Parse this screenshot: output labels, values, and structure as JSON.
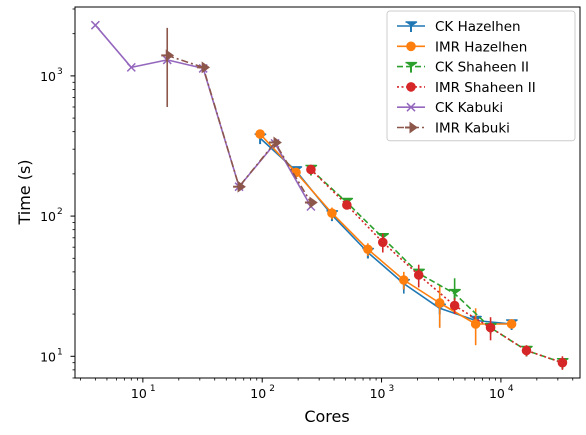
{
  "chart_data": {
    "type": "line",
    "xlabel": "Cores",
    "ylabel": "Time (s)",
    "xscale": "log",
    "yscale": "log",
    "xlim": [
      2.7,
      46000
    ],
    "ylim": [
      7,
      3100
    ],
    "grid": false,
    "legend_position": "top-right",
    "x_ticks": [
      {
        "value": 10,
        "base": "10",
        "exp": "1"
      },
      {
        "value": 100,
        "base": "10",
        "exp": "2"
      },
      {
        "value": 1000,
        "base": "10",
        "exp": "3"
      },
      {
        "value": 10000,
        "base": "10",
        "exp": "4"
      }
    ],
    "y_ticks": [
      {
        "value": 10,
        "base": "10",
        "exp": "1"
      },
      {
        "value": 100,
        "base": "10",
        "exp": "2"
      },
      {
        "value": 1000,
        "base": "10",
        "exp": "3"
      }
    ],
    "series": [
      {
        "name": "CK Hazelhen",
        "color": "#1f77b4",
        "linestyle": "solid",
        "marker": "tri_down",
        "x": [
          96,
          192,
          384,
          768,
          1536,
          3072,
          6144,
          12288
        ],
        "y": [
          360,
          210,
          102,
          55,
          33,
          22,
          18,
          17
        ],
        "err_lo": [
          0,
          0,
          10,
          5,
          5,
          6,
          0,
          0
        ],
        "err_hi": [
          0,
          0,
          10,
          5,
          5,
          7,
          0,
          0
        ]
      },
      {
        "name": "IMR Hazelhen",
        "color": "#ff7f0e",
        "linestyle": "solid",
        "marker": "circle",
        "x": [
          96,
          192,
          384,
          768,
          1536,
          3072,
          6144,
          12288
        ],
        "y": [
          385,
          205,
          105,
          58,
          35,
          24,
          17,
          17
        ],
        "err_lo": [
          0,
          0,
          10,
          6,
          5,
          8,
          5,
          0
        ],
        "err_hi": [
          0,
          0,
          10,
          6,
          5,
          8,
          5,
          0
        ]
      },
      {
        "name": "CK Shaheen II",
        "color": "#2ca02c",
        "linestyle": "dashed",
        "marker": "tri_down",
        "x": [
          256,
          512,
          1024,
          2048,
          4096,
          8192,
          16384,
          32768
        ],
        "y": [
          215,
          125,
          70,
          39,
          28,
          16,
          11,
          9
        ],
        "err_lo": [
          0,
          0,
          0,
          3,
          5,
          0,
          0,
          0
        ],
        "err_hi": [
          0,
          0,
          0,
          3,
          8,
          0,
          0,
          0
        ]
      },
      {
        "name": "IMR Shaheen II",
        "color": "#d62728",
        "linestyle": "dotted",
        "marker": "circle",
        "x": [
          256,
          512,
          1024,
          2048,
          4096,
          8192,
          16384,
          32768
        ],
        "y": [
          215,
          120,
          65,
          38,
          23,
          16,
          11,
          9
        ],
        "err_lo": [
          0,
          0,
          10,
          7,
          3,
          3,
          1,
          1
        ],
        "err_hi": [
          0,
          0,
          10,
          7,
          3,
          3,
          1,
          1
        ]
      },
      {
        "name": "CK Kabuki",
        "color": "#9467bd",
        "linestyle": "solid",
        "marker": "x",
        "x": [
          4,
          8,
          16,
          32,
          64,
          128,
          256
        ],
        "y": [
          2300,
          1150,
          1300,
          1130,
          162,
          330,
          117
        ],
        "err_lo": [
          0,
          0,
          0,
          0,
          0,
          0,
          0
        ],
        "err_hi": [
          0,
          0,
          0,
          0,
          0,
          0,
          0
        ]
      },
      {
        "name": "IMR Kabuki",
        "color": "#8c564b",
        "linestyle": "dashdot",
        "marker": "tri_right",
        "x": [
          16,
          32,
          64,
          128,
          256
        ],
        "y": [
          1400,
          1150,
          162,
          335,
          125
        ],
        "err_lo": [
          800,
          0,
          0,
          0,
          0
        ],
        "err_hi": [
          800,
          0,
          0,
          0,
          0
        ]
      }
    ]
  }
}
